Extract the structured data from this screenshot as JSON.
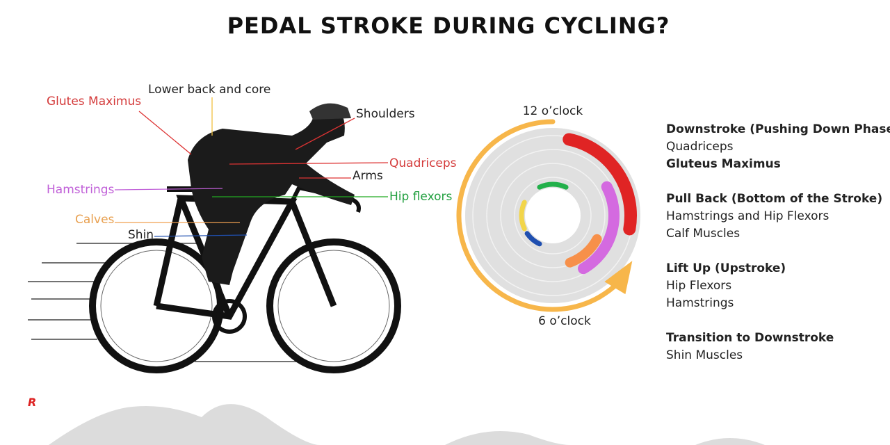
{
  "title": "PEDAL STROKE DURING CYCLING?",
  "logo": "R",
  "labels": [
    "Lower back and core",
    "Glutes Maximus",
    "Shoulders",
    "Quadriceps",
    "Arms",
    "Hamstrings",
    "Hip flexors",
    "Calves",
    "Shin"
  ],
  "clock": {
    "top": "12 o’clock",
    "bottom": "6 o’clock"
  },
  "phases": [
    {
      "heading": "Downstroke (Pushing Down Phase)",
      "items": [
        "Quadriceps",
        "Gluteus Maximus"
      ]
    },
    {
      "heading": "Pull Back (Bottom of the Stroke)",
      "items": [
        "Hamstrings and Hip Flexors",
        "Calf Muscles"
      ]
    },
    {
      "heading": "Lift Up (Upstroke)",
      "items": [
        "Hip Flexors",
        "Hamstrings"
      ]
    },
    {
      "heading": "Transition to Downstroke",
      "items": [
        "Shin Muscles"
      ]
    }
  ]
}
